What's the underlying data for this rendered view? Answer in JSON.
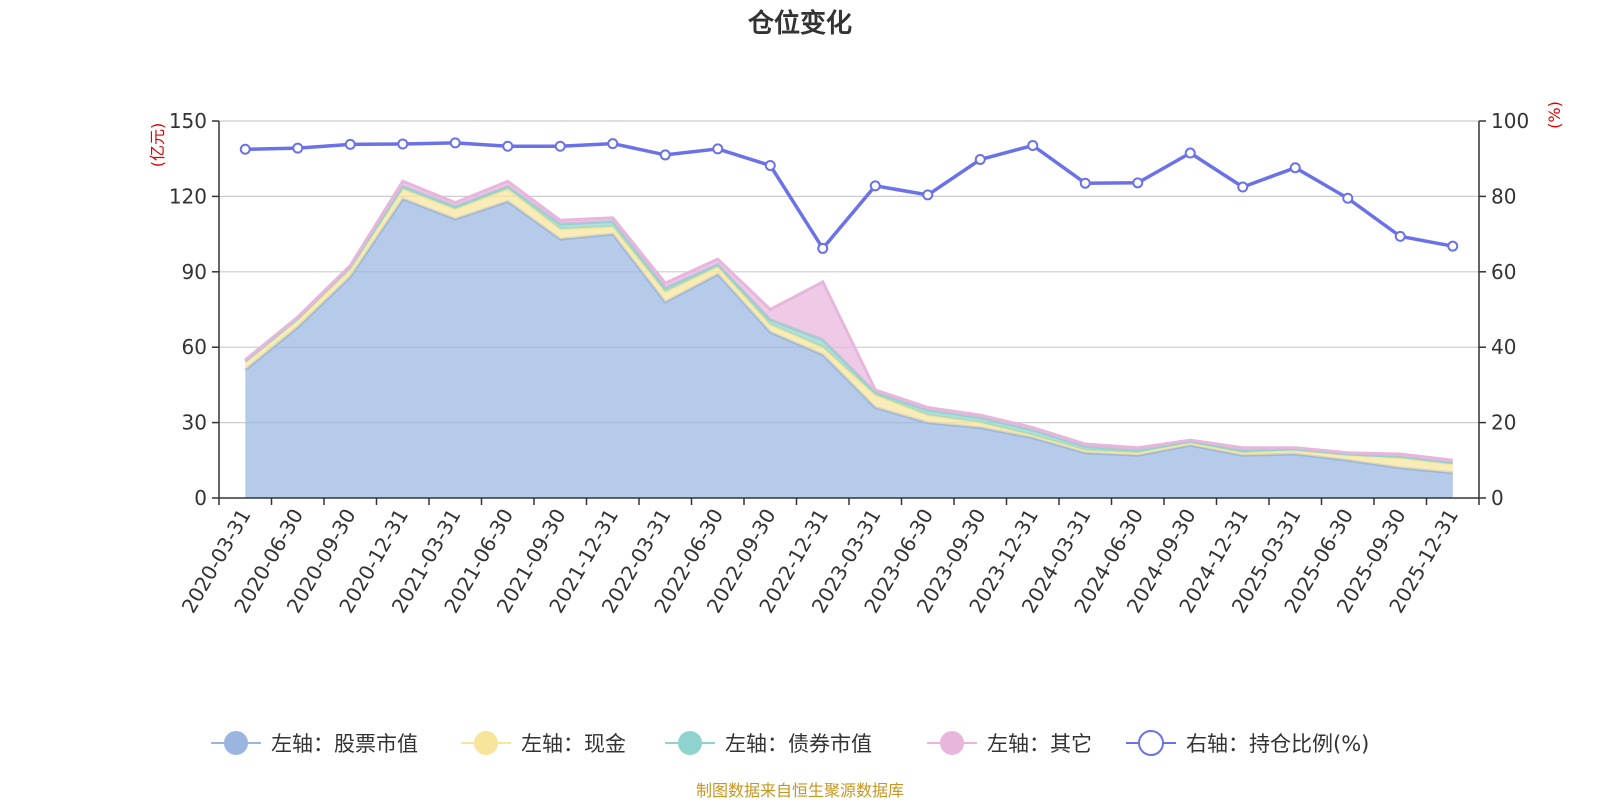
{
  "chart_data": {
    "type": "area",
    "title": "仓位变化",
    "left_axis_unit": "(亿元)",
    "right_axis_unit": "(%)",
    "left_ylim": [
      0,
      150
    ],
    "left_ticks": [
      "0",
      "30",
      "60",
      "90",
      "120",
      "150"
    ],
    "right_ylim": [
      0,
      100
    ],
    "right_ticks": [
      "0",
      "20",
      "40",
      "60",
      "80",
      "100"
    ],
    "categories": [
      "2020-03-31",
      "2020-06-30",
      "2020-09-30",
      "2020-12-31",
      "2021-03-31",
      "2021-06-30",
      "2021-09-30",
      "2021-12-31",
      "2022-03-31",
      "2022-06-30",
      "2022-09-30",
      "2022-12-31",
      "2023-03-31",
      "2023-06-30",
      "2023-09-30",
      "2023-12-31",
      "2024-03-31",
      "2024-06-30",
      "2024-09-30",
      "2024-12-31",
      "2025-03-31",
      "2025-06-30",
      "2025-09-30",
      "2025-12-31"
    ],
    "series": [
      {
        "name": "左轴：股票市值",
        "axis": "left",
        "type": "stacked-area",
        "color": "#9ab6e0",
        "values": [
          51,
          68,
          88,
          119,
          111,
          118,
          103,
          105,
          78,
          89,
          66,
          57,
          36,
          30,
          28,
          24,
          18,
          17,
          21,
          17,
          17.5,
          15,
          12,
          10
        ]
      },
      {
        "name": "左轴：现金",
        "axis": "left",
        "type": "stacked-area",
        "color": "#f7e59c",
        "values": [
          3,
          3,
          3,
          4,
          4,
          5,
          4,
          3,
          4,
          3,
          3,
          3,
          5,
          3,
          2,
          1,
          1,
          1,
          1,
          1,
          1.5,
          2,
          4,
          3.5
        ]
      },
      {
        "name": "左轴：债券市值",
        "axis": "left",
        "type": "stacked-area",
        "color": "#8fd3cf",
        "values": [
          0.5,
          0.5,
          1,
          1,
          1,
          1,
          2,
          2,
          1.5,
          1,
          2,
          3,
          1,
          2,
          2,
          2,
          1.5,
          1,
          0.5,
          1,
          0.5,
          0.5,
          0.5,
          0.5
        ]
      },
      {
        "name": "左轴：其它",
        "axis": "left",
        "type": "stacked-area",
        "color": "#e8b6dc",
        "values": [
          0.5,
          0.5,
          0.5,
          2,
          1.5,
          2,
          1.5,
          1.5,
          2,
          2,
          4,
          23,
          1,
          1,
          1,
          1,
          1,
          1,
          0.5,
          1,
          0.5,
          0.5,
          1,
          1
        ]
      },
      {
        "name": "右轴：持仓比例(%)",
        "axis": "right",
        "type": "line",
        "color": "#6b72e8",
        "values": [
          92.5,
          92.8,
          93.8,
          93.9,
          94.2,
          93.3,
          93.3,
          94,
          91,
          92.6,
          88.2,
          66.2,
          82.8,
          80.4,
          89.8,
          93.5,
          83.5,
          83.6,
          91.5,
          82.5,
          87.6,
          79.5,
          69.4,
          66.8
        ]
      }
    ],
    "legend_position": "bottom",
    "grid": true
  },
  "source_note": "制图数据来自恒生聚源数据库"
}
